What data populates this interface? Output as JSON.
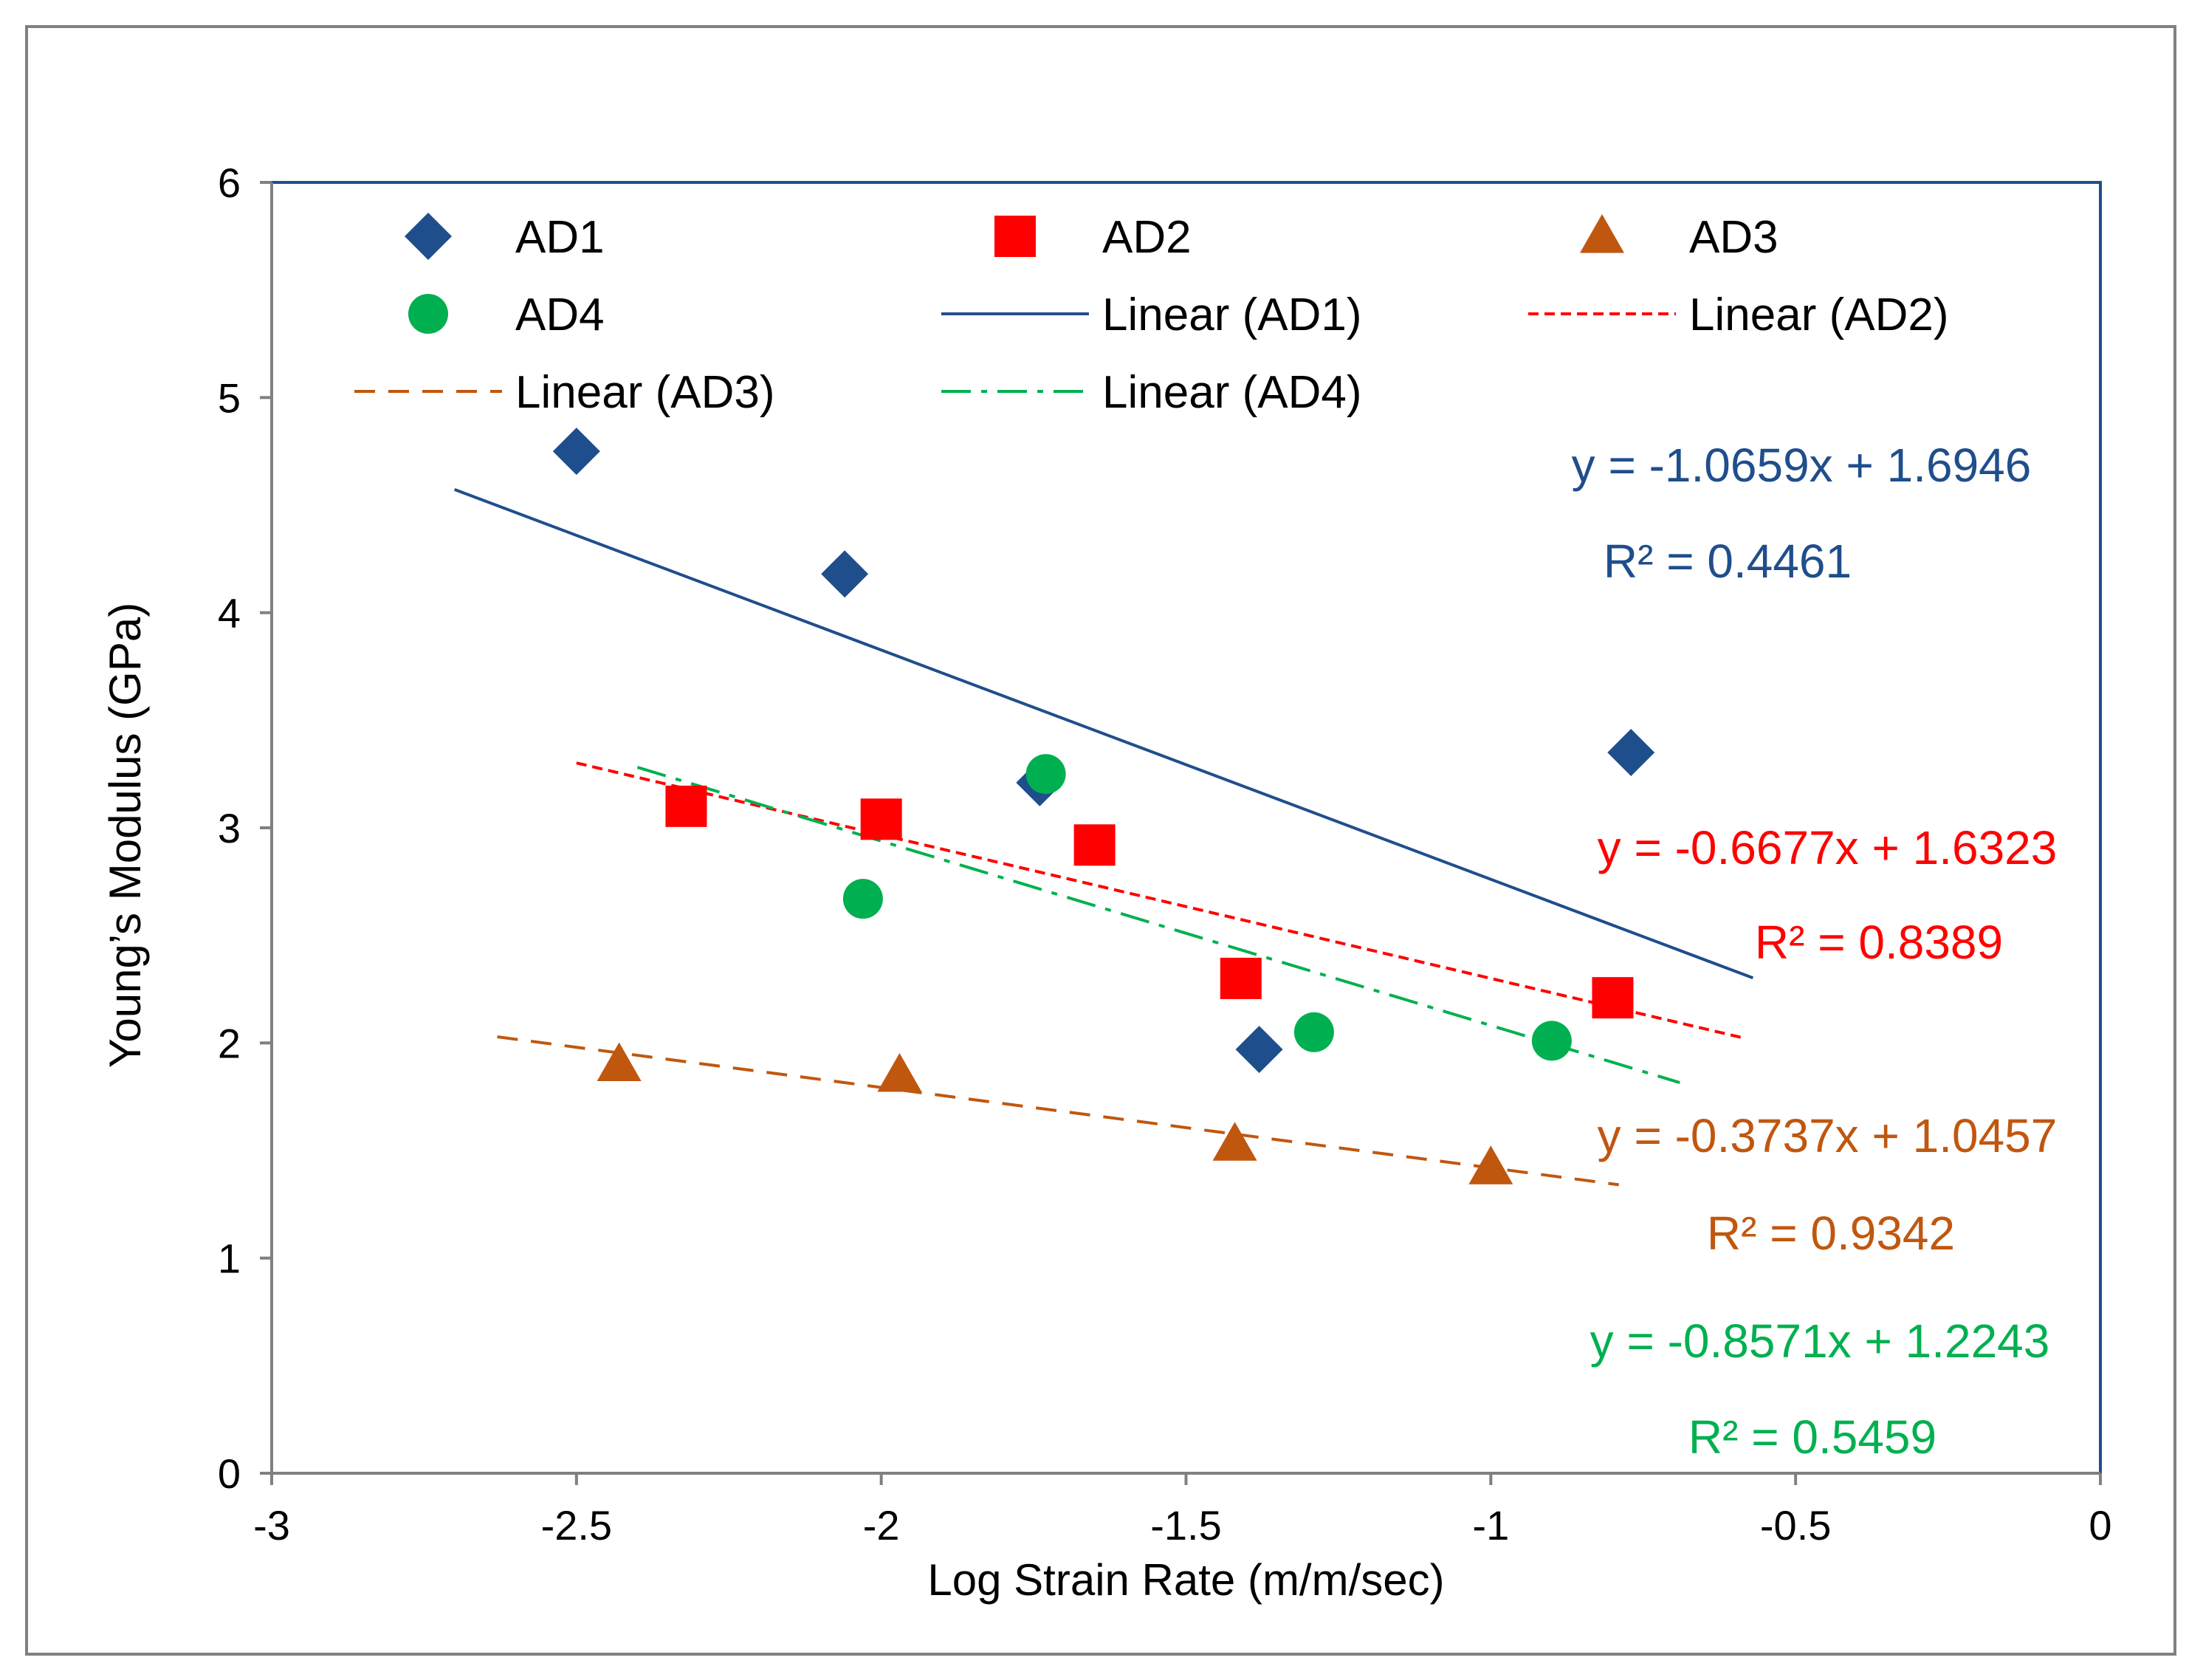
{
  "chart_data": {
    "type": "scatter",
    "title": "",
    "xlabel": "Log Strain Rate (m/m/sec)",
    "ylabel": "Young’s Modulus (GPa)",
    "xlim": [
      -3,
      0
    ],
    "ylim": [
      0,
      6
    ],
    "xticks": [
      -3,
      -2.5,
      -2,
      -1.5,
      -1,
      -0.5,
      0
    ],
    "yticks": [
      0,
      1,
      2,
      3,
      4,
      5,
      6
    ],
    "xtick_labels": [
      "-3",
      "-2.5",
      "-2",
      "-1.5",
      "-1",
      "-0.5",
      "0"
    ],
    "ytick_labels": [
      "0",
      "1",
      "2",
      "3",
      "4",
      "5",
      "6"
    ],
    "grid": false,
    "legend_position": "top",
    "series": [
      {
        "name": "AD1",
        "marker": "diamond",
        "color": "#1F4E8C",
        "points": [
          [
            -2.5,
            4.75
          ],
          [
            -2.06,
            4.18
          ],
          [
            -1.74,
            3.21
          ],
          [
            -1.38,
            1.97
          ],
          [
            -0.77,
            3.35
          ]
        ]
      },
      {
        "name": "AD2",
        "marker": "square",
        "color": "#FF0000",
        "points": [
          [
            -2.32,
            3.1
          ],
          [
            -2.0,
            3.04
          ],
          [
            -1.65,
            2.92
          ],
          [
            -1.41,
            2.3
          ],
          [
            -0.8,
            2.21
          ]
        ]
      },
      {
        "name": "AD3",
        "marker": "triangle",
        "color": "#C0570F",
        "points": [
          [
            -2.43,
            1.9
          ],
          [
            -1.97,
            1.85
          ],
          [
            -1.42,
            1.53
          ],
          [
            -1.0,
            1.42
          ]
        ]
      },
      {
        "name": "AD4",
        "marker": "circle",
        "color": "#00B050",
        "points": [
          [
            -2.03,
            2.67
          ],
          [
            -1.73,
            3.25
          ],
          [
            -1.29,
            2.05
          ],
          [
            -0.9,
            2.01
          ]
        ]
      }
    ],
    "trendlines": [
      {
        "name": "Linear (AD1)",
        "color": "#1F4E8C",
        "dash": "solid",
        "x_range": [
          -2.7,
          -0.57
        ],
        "slope": -1.0659,
        "intercept": 1.6946,
        "equation": "y = -1.0659x + 1.6946",
        "r2": "R² = 0.4461"
      },
      {
        "name": "Linear (AD2)",
        "color": "#FF0000",
        "dash": "dotted",
        "x_range": [
          -2.5,
          -0.59
        ],
        "slope": -0.6677,
        "intercept": 1.6323,
        "equation": "y = -0.6677x + 1.6323",
        "r2": "R² = 0.8389"
      },
      {
        "name": "Linear (AD3)",
        "color": "#C0570F",
        "dash": "dashed",
        "x_range": [
          -2.63,
          -0.79
        ],
        "slope": -0.3737,
        "intercept": 1.0457,
        "equation": "y = -0.3737x + 1.0457",
        "r2": "R² = 0.9342"
      },
      {
        "name": "Linear (AD4)",
        "color": "#00B050",
        "dash": "dashdot",
        "x_range": [
          -2.4,
          -0.69
        ],
        "slope": -0.8571,
        "intercept": 1.2243,
        "equation": "y = -0.8571x + 1.2243",
        "r2": "R² = 0.5459"
      }
    ]
  }
}
